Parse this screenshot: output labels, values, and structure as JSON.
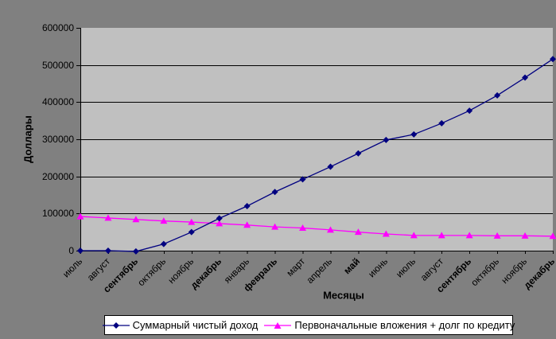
{
  "style": {
    "background": "#808080",
    "plot_background": "#C0C0C0",
    "axis_color": "#000000",
    "gridline_color": "#000000",
    "legend_background": "#FFFFFF"
  },
  "chart_data": {
    "type": "line",
    "title": "",
    "xlabel": "Месяцы",
    "ylabel": "Доллары",
    "ylim": [
      0,
      600000
    ],
    "y_tick_values": [
      0,
      100000,
      200000,
      300000,
      400000,
      500000,
      600000
    ],
    "y_tick_labels": [
      "0",
      "100000",
      "200000",
      "300000",
      "400000",
      "500000",
      "600000"
    ],
    "categories": [
      "июль",
      "август",
      "сентябрь",
      "октябрь",
      "ноябрь",
      "декабрь",
      "январь",
      "февраль",
      "март",
      "апрель",
      "май",
      "июнь",
      "июль",
      "август",
      "сентябрь",
      "октябрь",
      "ноябрь",
      "декабрь"
    ],
    "bold_category_indices": [
      2,
      5,
      7,
      10,
      14,
      17
    ],
    "grid": true,
    "legend_position": "bottom",
    "series": [
      {
        "name": "Суммарный чистый доход",
        "color": "#000080",
        "marker": "diamond",
        "values": [
          0,
          0,
          -2000,
          18000,
          50000,
          87000,
          120000,
          158000,
          192000,
          226000,
          262000,
          298000,
          313000,
          343000,
          377000,
          418000,
          466000,
          516000
        ]
      },
      {
        "name": "Первоначальные вложения + долг по кредиту",
        "color": "#FF00FF",
        "marker": "triangle",
        "values": [
          92000,
          88000,
          84000,
          80000,
          77000,
          73000,
          69000,
          64000,
          61000,
          56000,
          50000,
          45000,
          41000,
          41000,
          41000,
          40000,
          40000,
          39000
        ]
      }
    ]
  }
}
